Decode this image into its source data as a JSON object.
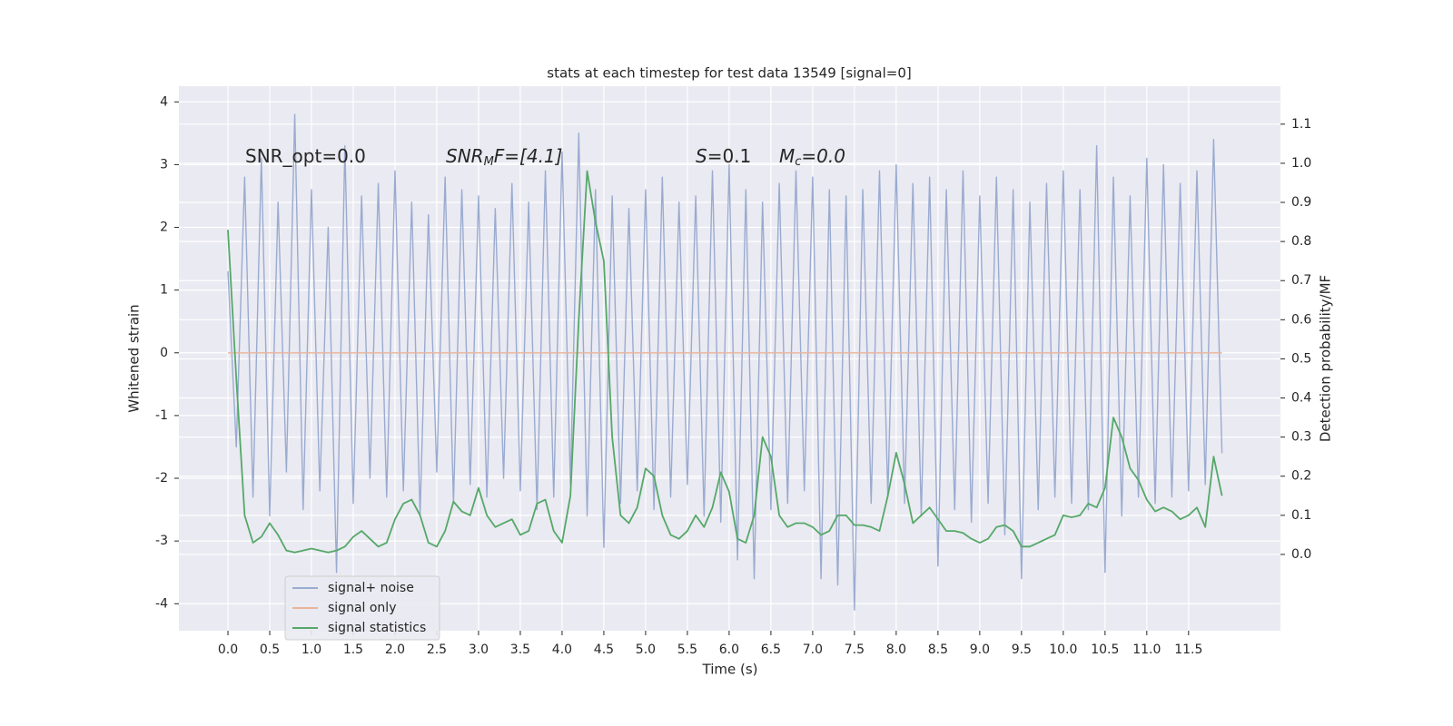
{
  "chart_data": {
    "type": "line",
    "title": "stats at each timestep for test data 13549 [signal=0]",
    "xlabel": "Time (s)",
    "ylabel": "Whitened strain",
    "y2label": "Detection probability/MF",
    "annotations": [
      [
        "SNR_opt=0.0"
      ],
      [
        "SNR",
        "M",
        "F=[4.1]"
      ],
      [
        "S",
        "=0.1"
      ],
      [
        "M",
        "c",
        "=0.0"
      ]
    ],
    "xlim": [
      -0.587,
      12.6
    ],
    "ylim": [
      -4.43,
      4.25
    ],
    "y2lim": [
      -0.195,
      1.197
    ],
    "xticks": [
      {
        "value": 0,
        "label": "0.0"
      },
      0.5,
      {
        "value": 1,
        "label": "1.0"
      },
      1.5,
      {
        "value": 2,
        "label": "2.0"
      },
      2.5,
      {
        "value": 3,
        "label": "3.0"
      },
      3.5,
      {
        "value": 4,
        "label": "4.0"
      },
      4.5,
      {
        "value": 5,
        "label": "5.0"
      },
      5.5,
      {
        "value": 6,
        "label": "6.0"
      },
      6.5,
      {
        "value": 7,
        "label": "7.0"
      },
      7.5,
      {
        "value": 8,
        "label": "8.0"
      },
      8.5,
      {
        "value": 9,
        "label": "9.0"
      },
      9.5,
      {
        "value": 10,
        "label": "10.0"
      },
      10.5,
      {
        "value": 11,
        "label": "11.0"
      },
      11.5
    ],
    "yticks": [
      -4,
      -3,
      -2,
      -1,
      0,
      1,
      2,
      3,
      4
    ],
    "y2ticks": [
      {
        "value": 0,
        "label": "0.0"
      },
      0.1,
      0.2,
      0.3,
      0.4,
      0.5,
      0.6,
      0.7,
      0.8,
      0.9,
      {
        "value": 1,
        "label": "1.0"
      },
      1.1
    ],
    "grid": true,
    "legend": "lower left",
    "x": [
      0,
      0.1,
      0.2,
      0.3,
      0.4,
      0.5,
      0.6,
      0.7,
      0.8,
      0.9,
      1,
      1.1,
      1.2,
      1.3,
      1.4,
      1.5,
      1.6,
      1.7,
      1.8,
      1.9,
      2,
      2.1,
      2.2,
      2.3,
      2.4,
      2.5,
      2.6,
      2.7,
      2.8,
      2.9,
      3,
      3.1,
      3.2,
      3.3,
      3.4,
      3.5,
      3.6,
      3.7,
      3.8,
      3.9,
      4,
      4.1,
      4.2,
      4.3,
      4.4,
      4.5,
      4.6,
      4.7,
      4.8,
      4.9,
      5,
      5.1,
      5.2,
      5.3,
      5.4,
      5.5,
      5.6,
      5.7,
      5.8,
      5.9,
      6,
      6.1,
      6.2,
      6.3,
      6.4,
      6.5,
      6.6,
      6.7,
      6.8,
      6.9,
      7,
      7.1,
      7.2,
      7.3,
      7.4,
      7.5,
      7.6,
      7.7,
      7.8,
      7.9,
      8,
      8.1,
      8.2,
      8.3,
      8.4,
      8.5,
      8.6,
      8.7,
      8.8,
      8.9,
      9,
      9.1,
      9.2,
      9.3,
      9.4,
      9.5,
      9.6,
      9.7,
      9.8,
      9.9,
      10,
      10.1,
      10.2,
      10.3,
      10.4,
      10.5,
      10.6,
      10.7,
      10.8,
      10.9,
      11,
      11.1,
      11.2,
      11.3,
      11.4,
      11.5,
      11.6,
      11.7,
      11.8,
      11.9
    ],
    "series": [
      {
        "name": "signal+ noise",
        "color": "#9aabd0",
        "values": [
          1.3,
          -1.5,
          2.8,
          -2.3,
          3.1,
          -2.6,
          2.4,
          -1.9,
          3.8,
          -2.5,
          2.6,
          -2.2,
          2.0,
          -3.5,
          3.3,
          -2.4,
          2.5,
          -2.0,
          2.7,
          -2.3,
          2.9,
          -2.2,
          2.4,
          -2.6,
          2.2,
          -1.9,
          2.8,
          -2.4,
          2.6,
          -2.1,
          2.5,
          -2.3,
          2.3,
          -2.0,
          2.7,
          -2.2,
          2.4,
          -2.5,
          2.9,
          -2.3,
          3.2,
          -2.1,
          3.5,
          -2.6,
          2.6,
          -3.1,
          2.5,
          -2.4,
          2.3,
          -2.2,
          2.6,
          -2.5,
          2.8,
          -2.3,
          2.4,
          -2.1,
          2.5,
          -2.6,
          2.9,
          -2.7,
          3.0,
          -3.3,
          2.6,
          -3.6,
          2.4,
          -2.5,
          2.7,
          -2.4,
          2.9,
          -2.2,
          2.8,
          -3.6,
          2.6,
          -3.7,
          2.5,
          -4.1,
          2.6,
          -2.4,
          2.9,
          -2.3,
          3.0,
          -2.4,
          2.7,
          -2.6,
          2.8,
          -3.4,
          2.6,
          -2.5,
          2.9,
          -2.7,
          2.5,
          -2.4,
          2.8,
          -2.9,
          2.6,
          -3.6,
          2.4,
          -2.5,
          2.7,
          -2.3,
          2.9,
          -2.4,
          2.6,
          -2.5,
          3.3,
          -3.5,
          2.8,
          -2.6,
          2.5,
          -2.3,
          3.1,
          -2.4,
          3.0,
          -2.3,
          2.7,
          -2.2,
          2.9,
          -2.1,
          3.4,
          -1.6
        ]
      },
      {
        "name": "signal only",
        "color": "#e8b49a",
        "values": [
          0,
          0,
          0,
          0,
          0,
          0,
          0,
          0,
          0,
          0,
          0,
          0,
          0,
          0,
          0,
          0,
          0,
          0,
          0,
          0,
          0,
          0,
          0,
          0,
          0,
          0,
          0,
          0,
          0,
          0,
          0,
          0,
          0,
          0,
          0,
          0,
          0,
          0,
          0,
          0,
          0,
          0,
          0,
          0,
          0,
          0,
          0,
          0,
          0,
          0,
          0,
          0,
          0,
          0,
          0,
          0,
          0,
          0,
          0,
          0,
          0,
          0,
          0,
          0,
          0,
          0,
          0,
          0,
          0,
          0,
          0,
          0,
          0,
          0,
          0,
          0,
          0,
          0,
          0,
          0,
          0,
          0,
          0,
          0,
          0,
          0,
          0,
          0,
          0,
          0,
          0,
          0,
          0,
          0,
          0,
          0,
          0,
          0,
          0,
          0,
          0,
          0,
          0,
          0,
          0,
          0,
          0,
          0,
          0,
          0,
          0,
          0,
          0,
          0,
          0,
          0,
          0,
          0,
          0,
          0
        ]
      },
      {
        "name": "signal statistics",
        "color": "#55a868",
        "axis": "y2",
        "values": [
          0.83,
          0.45,
          0.1,
          0.03,
          0.045,
          0.08,
          0.05,
          0.01,
          0.005,
          0.01,
          0.015,
          0.01,
          0.005,
          0.01,
          0.02,
          0.045,
          0.06,
          0.04,
          0.02,
          0.03,
          0.09,
          0.13,
          0.14,
          0.1,
          0.03,
          0.02,
          0.06,
          0.135,
          0.11,
          0.1,
          0.17,
          0.1,
          0.07,
          0.08,
          0.09,
          0.05,
          0.06,
          0.13,
          0.14,
          0.06,
          0.03,
          0.15,
          0.6,
          0.98,
          0.85,
          0.75,
          0.3,
          0.1,
          0.08,
          0.12,
          0.22,
          0.2,
          0.1,
          0.05,
          0.04,
          0.06,
          0.1,
          0.07,
          0.12,
          0.21,
          0.16,
          0.04,
          0.03,
          0.1,
          0.3,
          0.25,
          0.1,
          0.07,
          0.08,
          0.08,
          0.07,
          0.05,
          0.06,
          0.1,
          0.1,
          0.075,
          0.075,
          0.07,
          0.06,
          0.15,
          0.26,
          0.18,
          0.08,
          0.1,
          0.12,
          0.09,
          0.06,
          0.06,
          0.055,
          0.04,
          0.03,
          0.04,
          0.07,
          0.075,
          0.06,
          0.02,
          0.02,
          0.03,
          0.04,
          0.05,
          0.1,
          0.095,
          0.1,
          0.13,
          0.12,
          0.17,
          0.35,
          0.3,
          0.22,
          0.19,
          0.14,
          0.11,
          0.12,
          0.11,
          0.09,
          0.1,
          0.12,
          0.07,
          0.25,
          0.15
        ]
      }
    ]
  }
}
